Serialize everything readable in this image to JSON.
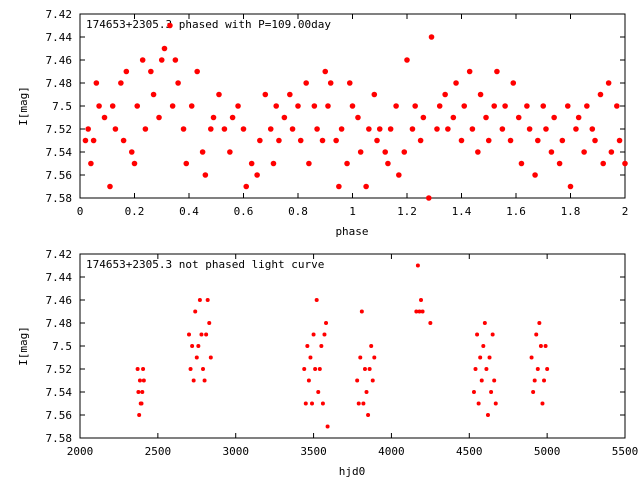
{
  "colors": {
    "points": "#ff0000",
    "axes": "#000000",
    "background": "#ffffff"
  },
  "chart_data": [
    {
      "type": "scatter",
      "title": "174653+2305.3 phased with P=109.00day",
      "xlabel": "phase",
      "ylabel": "I[mag]",
      "xlim": [
        0,
        2
      ],
      "ylim": [
        7.58,
        7.42
      ],
      "y_inverted": true,
      "grid": false,
      "xticks": [
        "0",
        "0.2",
        "0.4",
        "0.6",
        "0.8",
        "1",
        "1.2",
        "1.4",
        "1.6",
        "1.8",
        "2"
      ],
      "yticks": [
        "7.42",
        "7.44",
        "7.46",
        "7.48",
        "7.5",
        "7.52",
        "7.54",
        "7.56",
        "7.58"
      ],
      "x": [
        0.02,
        0.03,
        0.04,
        0.05,
        0.06,
        0.07,
        0.09,
        0.11,
        0.12,
        0.13,
        0.15,
        0.16,
        0.17,
        0.19,
        0.2,
        0.21,
        0.23,
        0.24,
        0.26,
        0.27,
        0.29,
        0.3,
        0.31,
        0.33,
        0.34,
        0.35,
        0.36,
        0.38,
        0.39,
        0.41,
        0.43,
        0.45,
        0.46,
        0.48,
        0.49,
        0.51,
        0.53,
        0.55,
        0.56,
        0.58,
        0.6,
        0.61,
        0.63,
        0.65,
        0.66,
        0.68,
        0.7,
        0.71,
        0.72,
        0.73,
        0.75,
        0.77,
        0.78,
        0.8,
        0.81,
        0.83,
        0.84,
        0.86,
        0.87,
        0.89,
        0.9,
        0.91,
        0.92,
        0.94,
        0.95,
        0.96,
        0.98,
        0.99,
        1.0,
        1.02,
        1.03,
        1.05,
        1.06,
        1.08,
        1.09,
        1.1,
        1.12,
        1.13,
        1.14,
        1.16,
        1.17,
        1.19,
        1.2,
        1.22,
        1.23,
        1.25,
        1.26,
        1.28,
        1.29,
        1.31,
        1.32,
        1.34,
        1.35,
        1.37,
        1.38,
        1.4,
        1.41,
        1.43,
        1.44,
        1.46,
        1.47,
        1.49,
        1.5,
        1.52,
        1.53,
        1.55,
        1.56,
        1.58,
        1.59,
        1.61,
        1.62,
        1.64,
        1.65,
        1.67,
        1.68,
        1.7,
        1.71,
        1.73,
        1.74,
        1.76,
        1.77,
        1.79,
        1.8,
        1.82,
        1.83,
        1.85,
        1.86,
        1.88,
        1.89,
        1.91,
        1.92,
        1.94,
        1.95,
        1.97,
        1.98,
        2.0
      ],
      "y": [
        7.53,
        7.52,
        7.55,
        7.53,
        7.48,
        7.5,
        7.51,
        7.57,
        7.5,
        7.52,
        7.48,
        7.53,
        7.47,
        7.54,
        7.55,
        7.5,
        7.46,
        7.52,
        7.47,
        7.49,
        7.51,
        7.46,
        7.45,
        7.43,
        7.5,
        7.46,
        7.48,
        7.52,
        7.55,
        7.5,
        7.47,
        7.54,
        7.56,
        7.52,
        7.51,
        7.49,
        7.52,
        7.54,
        7.51,
        7.5,
        7.52,
        7.57,
        7.55,
        7.56,
        7.53,
        7.49,
        7.52,
        7.55,
        7.5,
        7.53,
        7.51,
        7.49,
        7.52,
        7.5,
        7.53,
        7.48,
        7.55,
        7.5,
        7.52,
        7.53,
        7.47,
        7.5,
        7.48,
        7.53,
        7.57,
        7.52,
        7.55,
        7.48,
        7.5,
        7.51,
        7.54,
        7.57,
        7.52,
        7.49,
        7.53,
        7.52,
        7.54,
        7.55,
        7.52,
        7.5,
        7.56,
        7.54,
        7.46,
        7.52,
        7.5,
        7.53,
        7.51,
        7.58,
        7.44,
        7.52,
        7.5,
        7.49,
        7.52,
        7.51,
        7.48,
        7.53,
        7.5,
        7.47,
        7.52,
        7.54,
        7.49,
        7.51,
        7.53,
        7.5,
        7.47,
        7.52,
        7.5,
        7.53,
        7.48,
        7.51,
        7.55,
        7.5,
        7.52,
        7.56,
        7.53,
        7.5,
        7.52,
        7.54,
        7.51,
        7.55,
        7.53,
        7.5,
        7.57,
        7.52,
        7.51,
        7.54,
        7.5,
        7.52,
        7.53,
        7.49,
        7.55,
        7.48,
        7.54,
        7.5,
        7.53,
        7.55
      ]
    },
    {
      "type": "scatter",
      "title": "174653+2305.3 not phased light curve",
      "xlabel": "hjd0",
      "ylabel": "I[mag]",
      "xlim": [
        2000,
        5500
      ],
      "ylim": [
        7.58,
        7.42
      ],
      "y_inverted": true,
      "grid": false,
      "xticks": [
        "2000",
        "2500",
        "3000",
        "3500",
        "4000",
        "4500",
        "5000",
        "5500"
      ],
      "yticks": [
        "7.42",
        "7.44",
        "7.46",
        "7.48",
        "7.5",
        "7.52",
        "7.54",
        "7.56",
        "7.58"
      ],
      "x": [
        2370,
        2375,
        2380,
        2385,
        2390,
        2395,
        2400,
        2405,
        2410,
        2700,
        2710,
        2720,
        2730,
        2740,
        2750,
        2760,
        2770,
        2780,
        2790,
        2800,
        2810,
        2820,
        2830,
        2840,
        3440,
        3450,
        3460,
        3470,
        3480,
        3490,
        3500,
        3510,
        3520,
        3530,
        3540,
        3550,
        3560,
        3570,
        3580,
        3590,
        3780,
        3790,
        3800,
        3810,
        3820,
        3830,
        3840,
        3850,
        3860,
        3870,
        3880,
        3890,
        4160,
        4170,
        4180,
        4190,
        4200,
        4250,
        4530,
        4540,
        4550,
        4560,
        4570,
        4580,
        4590,
        4600,
        4610,
        4620,
        4630,
        4640,
        4650,
        4660,
        4670,
        4900,
        4910,
        4920,
        4930,
        4940,
        4950,
        4960,
        4970,
        4980,
        4990,
        5000
      ],
      "y": [
        7.52,
        7.54,
        7.56,
        7.53,
        7.55,
        7.55,
        7.54,
        7.52,
        7.53,
        7.49,
        7.52,
        7.5,
        7.53,
        7.47,
        7.51,
        7.5,
        7.46,
        7.49,
        7.52,
        7.53,
        7.49,
        7.46,
        7.48,
        7.51,
        7.52,
        7.55,
        7.5,
        7.53,
        7.51,
        7.55,
        7.49,
        7.52,
        7.46,
        7.54,
        7.52,
        7.5,
        7.55,
        7.49,
        7.48,
        7.57,
        7.53,
        7.55,
        7.51,
        7.47,
        7.55,
        7.52,
        7.54,
        7.56,
        7.52,
        7.5,
        7.53,
        7.51,
        7.47,
        7.43,
        7.47,
        7.46,
        7.47,
        7.48,
        7.54,
        7.52,
        7.49,
        7.55,
        7.51,
        7.53,
        7.5,
        7.48,
        7.52,
        7.56,
        7.51,
        7.54,
        7.49,
        7.53,
        7.55,
        7.51,
        7.54,
        7.53,
        7.49,
        7.52,
        7.48,
        7.5,
        7.55,
        7.53,
        7.5,
        7.52
      ]
    }
  ]
}
